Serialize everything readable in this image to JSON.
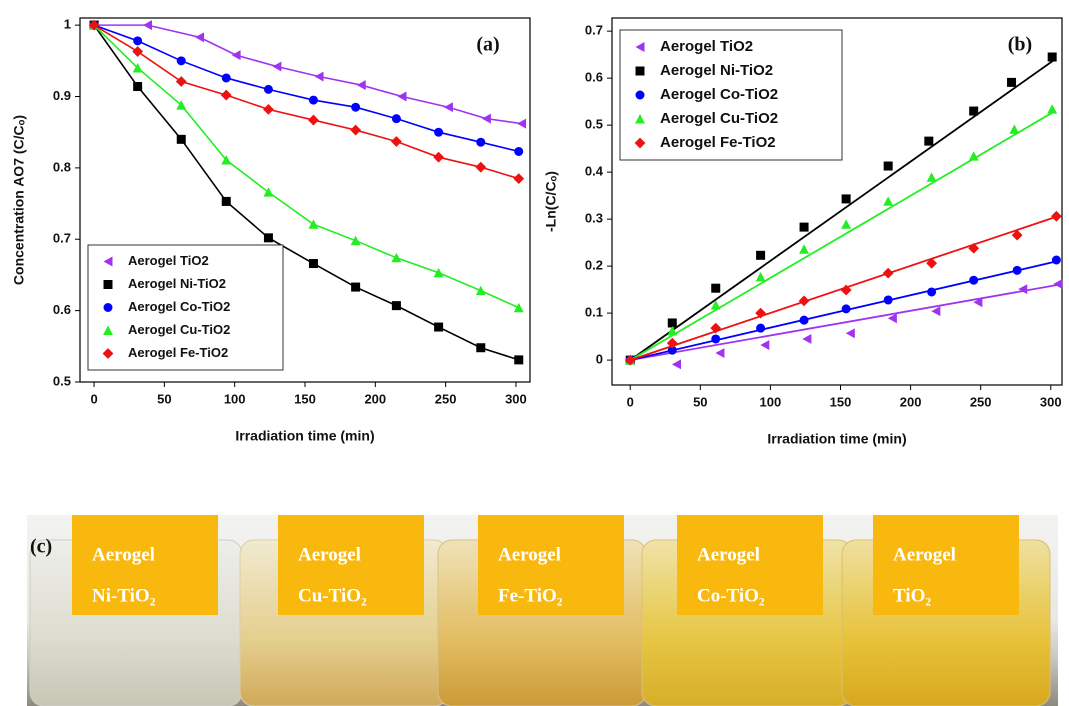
{
  "chart_data": [
    {
      "type": "line",
      "panel_label": "(a)",
      "x_label": "Irradiation time (min)",
      "y_label": "Concentration AO7 (C/Cₒ)",
      "xlim": [
        -10,
        310
      ],
      "ylim": [
        0.5,
        1.01
      ],
      "xticks": [
        0,
        50,
        100,
        150,
        200,
        250,
        300
      ],
      "yticks": [
        0.5,
        0.6,
        0.7,
        0.8,
        0.9,
        1
      ],
      "legend": "lower left",
      "series": [
        {
          "name": "Aerogel TiO2",
          "color": "#a033f0",
          "marker": "triangle-left",
          "x": [
            0,
            38,
            75,
            101,
            130,
            160,
            190,
            219,
            252,
            279,
            304
          ],
          "values": [
            1.0,
            1.0,
            0.983,
            0.958,
            0.942,
            0.928,
            0.916,
            0.9,
            0.885,
            0.869,
            0.862
          ]
        },
        {
          "name": "Aerogel Ni-TiO2",
          "color": "#000000",
          "marker": "square",
          "x": [
            0,
            31,
            62,
            94,
            124,
            156,
            186,
            215,
            245,
            275,
            302
          ],
          "values": [
            1.0,
            0.914,
            0.84,
            0.753,
            0.702,
            0.666,
            0.633,
            0.607,
            0.577,
            0.548,
            0.531
          ]
        },
        {
          "name": "Aerogel Co-TiO2",
          "color": "#0000ff",
          "marker": "circle",
          "x": [
            0,
            31,
            62,
            94,
            124,
            156,
            186,
            215,
            245,
            275,
            302
          ],
          "values": [
            1.0,
            0.978,
            0.95,
            0.926,
            0.91,
            0.895,
            0.885,
            0.869,
            0.85,
            0.836,
            0.823
          ]
        },
        {
          "name": "Aerogel Cu-TiO2",
          "color": "#22ee22",
          "marker": "triangle-up",
          "x": [
            0,
            31,
            62,
            94,
            124,
            156,
            186,
            215,
            245,
            275,
            302
          ],
          "values": [
            1.0,
            0.94,
            0.888,
            0.811,
            0.766,
            0.721,
            0.698,
            0.674,
            0.653,
            0.628,
            0.604
          ]
        },
        {
          "name": "Aerogel Fe-TiO2",
          "color": "#ee1111",
          "marker": "diamond",
          "x": [
            0,
            31,
            62,
            94,
            124,
            156,
            186,
            215,
            245,
            275,
            302
          ],
          "values": [
            1.0,
            0.963,
            0.921,
            0.902,
            0.882,
            0.867,
            0.853,
            0.837,
            0.815,
            0.801,
            0.785
          ]
        }
      ]
    },
    {
      "type": "scatter",
      "panel_label": "(b)",
      "x_label": "Irradiation time (min)",
      "y_label": "-Ln(C/Cₒ)",
      "xlim": [
        -13,
        308
      ],
      "ylim": [
        -0.053,
        0.728
      ],
      "xticks": [
        0,
        50,
        100,
        150,
        200,
        250,
        300
      ],
      "yticks": [
        0,
        0.1,
        0.2,
        0.3,
        0.4,
        0.5,
        0.6,
        0.7
      ],
      "legend": "upper left",
      "series": [
        {
          "name": "Aerogel TiO2",
          "color": "#a033f0",
          "marker": "triangle-left",
          "x": [
            0,
            33,
            64,
            96,
            126,
            157,
            187,
            218,
            248,
            280,
            305
          ],
          "values": [
            0,
            -0.009,
            0.015,
            0.032,
            0.045,
            0.057,
            0.089,
            0.104,
            0.123,
            0.151,
            0.162
          ],
          "fit_x": [
            0,
            305
          ],
          "fit_values": [
            0,
            0.16
          ]
        },
        {
          "name": "Aerogel Ni-TiO2",
          "color": "#000000",
          "marker": "square",
          "x": [
            0,
            30,
            61,
            93,
            124,
            154,
            184,
            213,
            245,
            272,
            301
          ],
          "values": [
            0,
            0.079,
            0.153,
            0.223,
            0.283,
            0.343,
            0.413,
            0.466,
            0.53,
            0.591,
            0.645
          ],
          "fit_x": [
            0,
            303
          ],
          "fit_values": [
            0,
            0.64
          ]
        },
        {
          "name": "Aerogel Co-TiO2",
          "color": "#0000ff",
          "marker": "circle",
          "x": [
            0,
            30,
            61,
            93,
            124,
            154,
            184,
            215,
            245,
            276,
            304
          ],
          "values": [
            0,
            0.021,
            0.045,
            0.068,
            0.085,
            0.109,
            0.128,
            0.145,
            0.17,
            0.191,
            0.213
          ],
          "fit_x": [
            0,
            304
          ],
          "fit_values": [
            0,
            0.21
          ]
        },
        {
          "name": "Aerogel Cu-TiO2",
          "color": "#22ee22",
          "marker": "triangle-up",
          "x": [
            0,
            30,
            61,
            93,
            124,
            154,
            184,
            215,
            245,
            274,
            301
          ],
          "values": [
            0,
            0.062,
            0.117,
            0.177,
            0.236,
            0.289,
            0.338,
            0.389,
            0.434,
            0.491,
            0.534
          ],
          "fit_x": [
            0,
            303
          ],
          "fit_values": [
            0,
            0.53
          ]
        },
        {
          "name": "Aerogel Fe-TiO2",
          "color": "#ee1111",
          "marker": "diamond",
          "x": [
            0,
            30,
            61,
            93,
            124,
            154,
            184,
            215,
            245,
            276,
            304
          ],
          "values": [
            0,
            0.036,
            0.068,
            0.1,
            0.126,
            0.149,
            0.185,
            0.206,
            0.238,
            0.266,
            0.306
          ],
          "fit_x": [
            0,
            304
          ],
          "fit_values": [
            0,
            0.305
          ]
        }
      ]
    }
  ],
  "photo": {
    "panel_label": "(c)",
    "samples": [
      {
        "line1": "Aerogel",
        "line2": "Ni-TiO₂"
      },
      {
        "line1": "Aerogel",
        "line2": "Cu-TiO₂"
      },
      {
        "line1": "Aerogel",
        "line2": "Fe-TiO₂"
      },
      {
        "line1": "Aerogel",
        "line2": "Co-TiO₂"
      },
      {
        "line1": "Aerogel",
        "line2": "TiO₂"
      }
    ]
  }
}
